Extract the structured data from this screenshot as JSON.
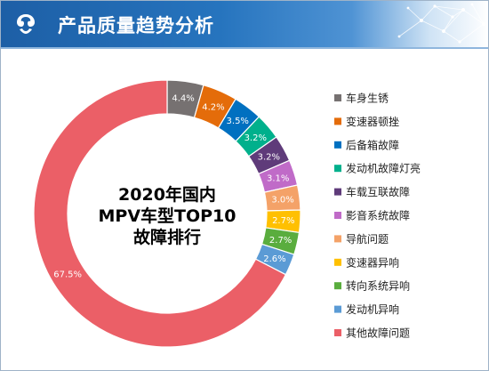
{
  "header": {
    "title": "产品质量趋势分析"
  },
  "chart_data": {
    "type": "pie",
    "title_lines": [
      "2020年国内",
      "MPV车型TOP10",
      "故障排行"
    ],
    "legend_position": "right",
    "slices": [
      {
        "label": "车身生锈",
        "value": 4.4,
        "value_label": "4.4%",
        "color": "#767171"
      },
      {
        "label": "变速器顿挫",
        "value": 4.2,
        "value_label": "4.2%",
        "color": "#e46c0a"
      },
      {
        "label": "后备箱故障",
        "value": 3.5,
        "value_label": "3.5%",
        "color": "#0070c0"
      },
      {
        "label": "发动机故障灯亮",
        "value": 3.2,
        "value_label": "3.2%",
        "color": "#00b08c"
      },
      {
        "label": "车载互联故障",
        "value": 3.2,
        "value_label": "3.2%",
        "color": "#5f3b7a"
      },
      {
        "label": "影音系统故障",
        "value": 3.1,
        "value_label": "3.1%",
        "color": "#c06bc8"
      },
      {
        "label": "导航问题",
        "value": 3.0,
        "value_label": "3.0%",
        "color": "#f4a268"
      },
      {
        "label": "变速器异响",
        "value": 2.7,
        "value_label": "2.7%",
        "color": "#ffc000"
      },
      {
        "label": "转向系统异响",
        "value": 2.7,
        "value_label": "2.7%",
        "color": "#5aad3e"
      },
      {
        "label": "发动机异响",
        "value": 2.6,
        "value_label": "2.6%",
        "color": "#5b9bd5"
      },
      {
        "label": "其他故障问题",
        "value": 67.5,
        "value_label": "67.5%",
        "color": "#eb5f67"
      }
    ]
  }
}
